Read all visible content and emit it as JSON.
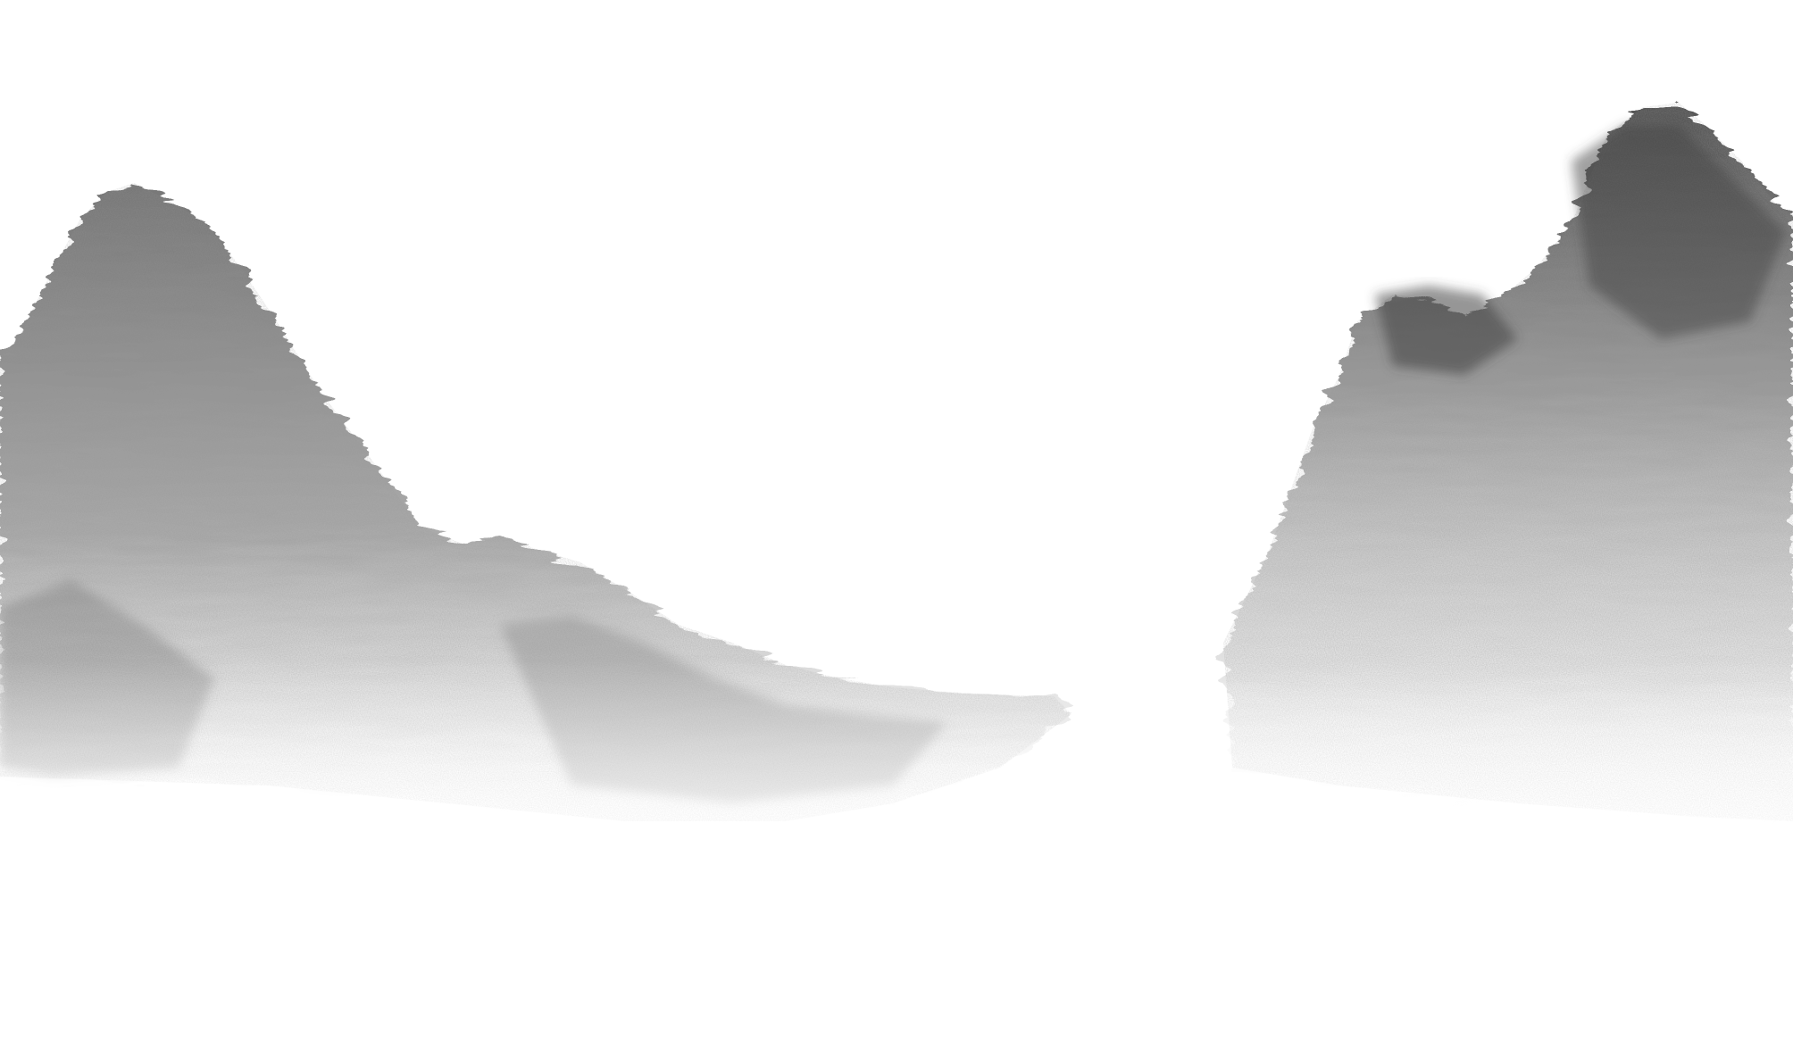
{
  "scene": {
    "kind": "ink-wash landscape painting",
    "background_color": "#ffffff",
    "ink_colors": {
      "dark": "#3a3a3a",
      "mid": "#7a7a7a",
      "light": "#b8b8b8",
      "mist": "#e6e6e6"
    },
    "elements": [
      "left-mountain-range",
      "right-mountain-cliff",
      "valley-mist"
    ]
  }
}
